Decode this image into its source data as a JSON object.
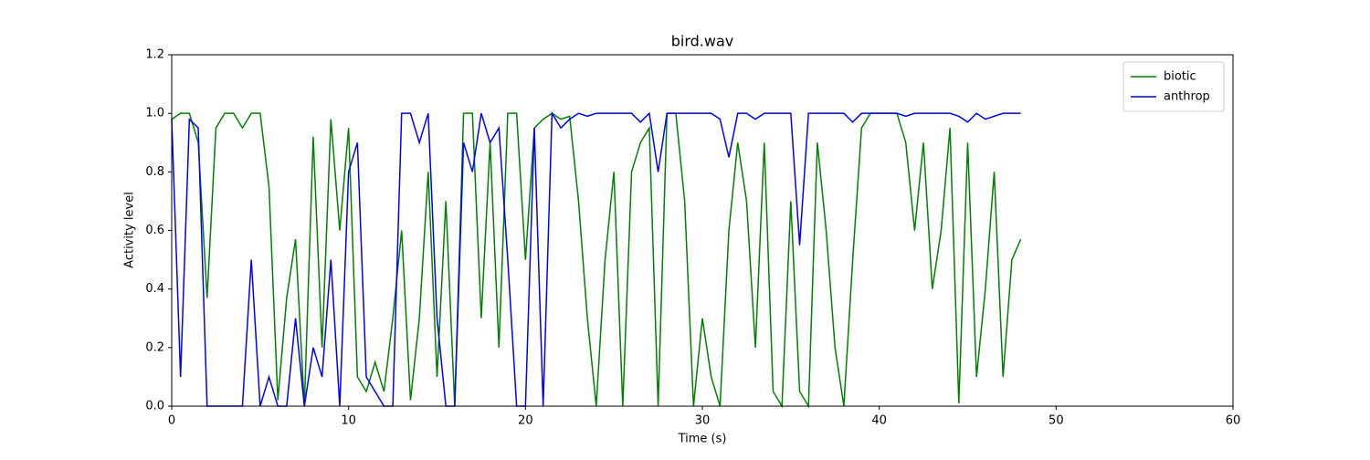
{
  "chart_data": {
    "type": "line",
    "title": "bird.wav",
    "x_label": "Time (s)",
    "y_label": "Activity level",
    "x": [
      0,
      0.5,
      1,
      1.5,
      2,
      2.5,
      3,
      3.5,
      4,
      4.5,
      5,
      5.5,
      6,
      6.5,
      7,
      7.5,
      8,
      8.5,
      9,
      9.5,
      10,
      10.5,
      11,
      11.5,
      12,
      12.5,
      13,
      13.5,
      14,
      14.5,
      15,
      15.5,
      16,
      16.5,
      17,
      17.5,
      18,
      18.5,
      19,
      19.5,
      20,
      20.5,
      21,
      21.5,
      22,
      22.5,
      23,
      23.5,
      24,
      24.5,
      25,
      25.5,
      26,
      26.5,
      27,
      27.5,
      28,
      28.5,
      29,
      29.5,
      30,
      30.5,
      31,
      31.5,
      32,
      32.5,
      33,
      33.5,
      34,
      34.5,
      35,
      35.5,
      36,
      36.5,
      37,
      37.5,
      38,
      38.5,
      39,
      39.5,
      40,
      40.5,
      41,
      41.5,
      42,
      42.5,
      43,
      43.5,
      44,
      44.5,
      45,
      45.5,
      46,
      46.5,
      47,
      47.5,
      48
    ],
    "series": [
      {
        "name": "biotic",
        "color": "#008000",
        "values": [
          0.98,
          1,
          1,
          0.9,
          0.37,
          0.95,
          1,
          1,
          0.95,
          1,
          1,
          0.75,
          0.02,
          0.37,
          0.57,
          0,
          0.92,
          0.2,
          0.98,
          0.6,
          0.95,
          0.1,
          0.05,
          0.15,
          0.05,
          0.3,
          0.6,
          0.02,
          0.3,
          0.8,
          0.1,
          0.7,
          0,
          1,
          1,
          0.3,
          0.9,
          0.2,
          1,
          1,
          0.5,
          0.95,
          0.98,
          1,
          0.98,
          0.99,
          0.7,
          0.3,
          0,
          0.5,
          0.8,
          0,
          0.8,
          0.9,
          0.95,
          0,
          1,
          1,
          0.7,
          0,
          0.3,
          0.1,
          0,
          0.6,
          0.9,
          0.7,
          0.2,
          0.9,
          0.05,
          0,
          0.7,
          0.05,
          0,
          0.9,
          0.6,
          0.2,
          0,
          0.5,
          0.95,
          1,
          1,
          1,
          1,
          0.9,
          0.6,
          0.9,
          0.4,
          0.6,
          0.95,
          0.01,
          0.9,
          0.1,
          0.4,
          0.8,
          0.1,
          0.5,
          0.57
        ]
      },
      {
        "name": "anthrop",
        "color": "#0000ff",
        "values": [
          0.98,
          0.1,
          0.98,
          0.95,
          0,
          0,
          0,
          0,
          0,
          0.5,
          0,
          0.1,
          0,
          0,
          0.3,
          0,
          0.2,
          0.1,
          0.5,
          0,
          0.8,
          0.9,
          0.1,
          0.05,
          0,
          0,
          1,
          1,
          0.9,
          1,
          0.3,
          0,
          0,
          0.9,
          0.8,
          1,
          0.9,
          0.95,
          0.5,
          0,
          0,
          0.95,
          0,
          1,
          0.95,
          0.98,
          1,
          0.99,
          1,
          1,
          1,
          1,
          1,
          0.97,
          1,
          0.8,
          1,
          1,
          1,
          1,
          1,
          1,
          0.98,
          0.85,
          1,
          1,
          0.98,
          1,
          1,
          1,
          1,
          0.55,
          1,
          1,
          1,
          1,
          1,
          0.97,
          1,
          1,
          1,
          1,
          1,
          0.99,
          1,
          1,
          1,
          1,
          1,
          0.99,
          0.97,
          1,
          0.98,
          0.99,
          1,
          1,
          1
        ]
      }
    ],
    "xlim": [
      0,
      60
    ],
    "xticks": [
      0,
      10,
      20,
      30,
      40,
      50,
      60
    ],
    "ylim": [
      0,
      1.2
    ],
    "yticks": [
      {
        "value": 0,
        "label": "0.0"
      },
      0.2,
      0.4,
      0.6,
      0.8,
      {
        "value": 1,
        "label": "1.0"
      },
      1.2
    ],
    "legend": "upper right"
  }
}
